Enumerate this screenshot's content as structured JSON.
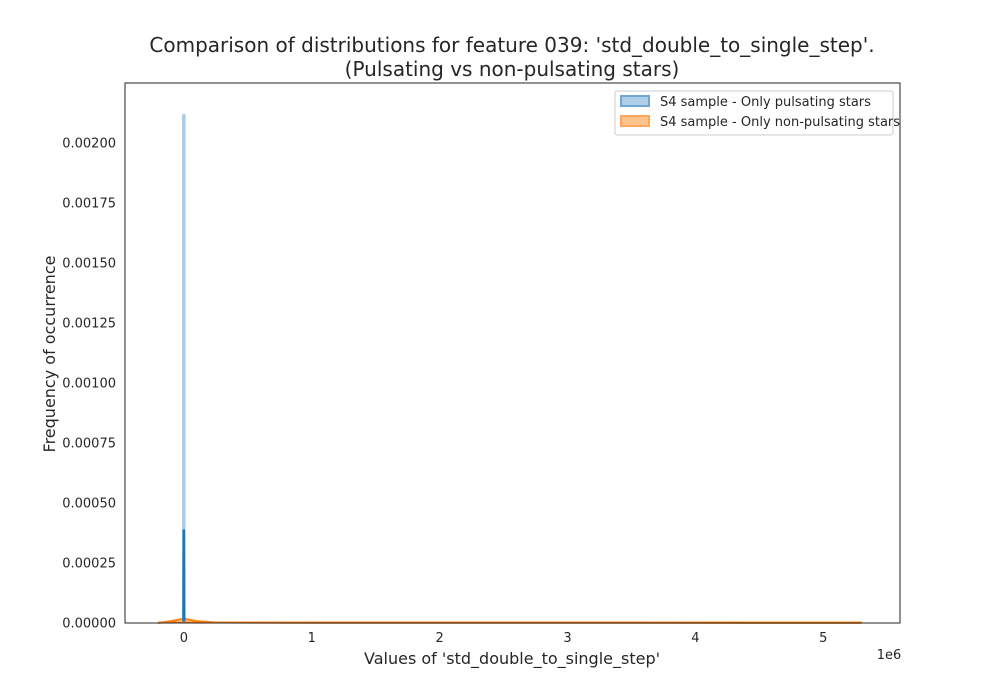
{
  "chart_data": {
    "type": "area",
    "title_line1": "Comparison of distributions for feature 039: 'std_double_to_single_step'.",
    "title_line2": "(Pulsating vs non-pulsating stars)",
    "xlabel": "Values of 'std_double_to_single_step'",
    "ylabel": "Frequency of occurrence",
    "x_offset_label": "1e6",
    "xlim": [
      -0.46,
      5.6
    ],
    "ylim": [
      0,
      0.00225
    ],
    "x_ticks": [
      0,
      1,
      2,
      3,
      4,
      5
    ],
    "x_tick_labels": [
      "0",
      "1",
      "2",
      "3",
      "4",
      "5"
    ],
    "y_ticks": [
      0,
      0.00025,
      0.0005,
      0.00075,
      0.001,
      0.00125,
      0.0015,
      0.00175,
      0.002
    ],
    "y_tick_labels": [
      "0.00000",
      "0.00025",
      "0.00050",
      "0.00075",
      "0.00100",
      "0.00125",
      "0.00150",
      "0.00175",
      "0.00200"
    ],
    "grid": false,
    "legend_position": "top-right",
    "series": [
      {
        "name": "S4 sample - Only pulsating stars",
        "color": "#1f77b4",
        "fill_color": "#aecde6",
        "histogram_peak": 0.00212,
        "kde": [
          [
            -0.003,
            0.0
          ],
          [
            0.0,
            0.00039
          ],
          [
            0.003,
            0.0
          ]
        ]
      },
      {
        "name": "S4 sample - Only non-pulsating stars",
        "color": "#ff7f0e",
        "fill_color": "#ffc48e",
        "kde": [
          [
            -0.2,
            0.0
          ],
          [
            -0.1,
            8e-06
          ],
          [
            0.0,
            1.8e-05
          ],
          [
            0.1,
            8e-06
          ],
          [
            0.25,
            2e-06
          ],
          [
            1.0,
            1e-06
          ],
          [
            3.0,
            1e-06
          ],
          [
            5.3,
            5e-07
          ]
        ]
      }
    ]
  }
}
